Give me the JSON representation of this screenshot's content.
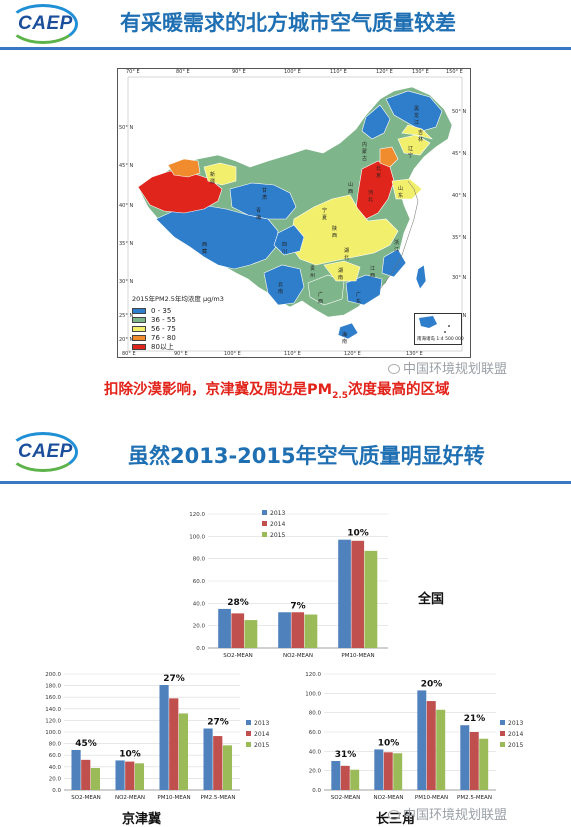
{
  "slide1": {
    "logo_text": "CAEP",
    "title": "有采暖需求的北方城市空气质量较差",
    "map": {
      "legend_title": "2015年PM2.5年均浓度 μg/m3",
      "legend": [
        {
          "label": "0 - 35",
          "color": "#2f7ecb"
        },
        {
          "label": "36 - 55",
          "color": "#7fb58a"
        },
        {
          "label": "56 - 75",
          "color": "#f2ef6c"
        },
        {
          "label": "76 - 80",
          "color": "#f08c2e"
        },
        {
          "label": "80以上",
          "color": "#e0261c"
        }
      ],
      "lon_top": [
        "70° E",
        "80° E",
        "90° E",
        "100° E",
        "110° E",
        "120° E",
        "130° E",
        "150° E"
      ],
      "lon_bottom": [
        "80° E",
        "90° E",
        "100° E",
        "110° E",
        "120° E",
        "130° E"
      ],
      "lat_left": [
        "50° N",
        "45° N",
        "40° N",
        "35° N",
        "30° N",
        "25° N",
        "20° N"
      ],
      "lat_right": [
        "50° N",
        "45° N",
        "40° N",
        "35° N",
        "30° N",
        "25° N"
      ],
      "regions": [
        "黑龙江",
        "吉林",
        "辽宁",
        "内蒙古",
        "新疆",
        "甘肃",
        "宁夏",
        "青海",
        "西藏",
        "四川",
        "贵州",
        "云南",
        "广西",
        "广东",
        "海南",
        "湖南",
        "湖北",
        "江西",
        "浙江",
        "山东",
        "北京",
        "河北",
        "山西",
        "陕西"
      ],
      "inset_caption": "南海诸岛 1:4 500 000"
    },
    "watermark": "中国环境规划联盟",
    "caption_pre": "扣除沙漠影响，京津冀及周边是PM",
    "caption_sub": "2.5",
    "caption_post": "浓度最高的区域"
  },
  "slide2": {
    "logo_text": "CAEP",
    "title": "虽然2013-2015年空气质量明显好转",
    "watermark": "中国环境规划联盟",
    "series_colors": {
      "2013": "#4f81bd",
      "2014": "#c0504d",
      "2015": "#9bbb59"
    },
    "charts": [
      {
        "id": "national",
        "label": "全国",
        "chart_data": {
          "type": "bar",
          "categories": [
            "SO2-MEAN",
            "NO2-MEAN",
            "PM10-MEAN"
          ],
          "series": [
            {
              "name": "2013",
              "values": [
                35,
                32,
                97
              ]
            },
            {
              "name": "2014",
              "values": [
                31,
                32,
                96
              ]
            },
            {
              "name": "2015",
              "values": [
                25,
                30,
                87
              ]
            }
          ],
          "annotations": [
            "28%",
            "7%",
            "10%"
          ],
          "ylim": [
            0,
            120
          ],
          "yticks": [
            "0.0",
            "20.0",
            "40.0",
            "60.0",
            "80.0",
            "100.0",
            "120.0"
          ],
          "legend": "top-right"
        }
      },
      {
        "id": "jingjinji",
        "label": "京津冀",
        "chart_data": {
          "type": "bar",
          "categories": [
            "SO2-MEAN",
            "NO2-MEAN",
            "PM10-MEAN",
            "PM2.5-MEAN"
          ],
          "series": [
            {
              "name": "2013",
              "values": [
                69,
                51,
                181,
                106
              ]
            },
            {
              "name": "2014",
              "values": [
                52,
                49,
                158,
                93
              ]
            },
            {
              "name": "2015",
              "values": [
                38,
                46,
                132,
                77
              ]
            }
          ],
          "annotations": [
            "45%",
            "10%",
            "27%",
            "27%"
          ],
          "ylim": [
            0,
            200
          ],
          "yticks": [
            "0.0",
            "20.0",
            "40.0",
            "60.0",
            "80.0",
            "100.0",
            "120.0",
            "140.0",
            "160.0",
            "180.0",
            "200.0"
          ],
          "legend": "right"
        }
      },
      {
        "id": "changsanjiao",
        "label": "长三角",
        "chart_data": {
          "type": "bar",
          "categories": [
            "SO2-MEAN",
            "NO2-MEAN",
            "PM10-MEAN",
            "PM2.5-MEAN"
          ],
          "series": [
            {
              "name": "2013",
              "values": [
                30,
                42,
                103,
                67
              ]
            },
            {
              "name": "2014",
              "values": [
                25,
                39,
                92,
                60
              ]
            },
            {
              "name": "2015",
              "values": [
                21,
                38,
                83,
                53
              ]
            }
          ],
          "annotations": [
            "31%",
            "10%",
            "20%",
            "21%"
          ],
          "ylim": [
            0,
            120
          ],
          "yticks": [
            "0.0",
            "20.0",
            "40.0",
            "60.0",
            "80.0",
            "100.0",
            "120.0"
          ],
          "legend": "right"
        }
      }
    ]
  }
}
